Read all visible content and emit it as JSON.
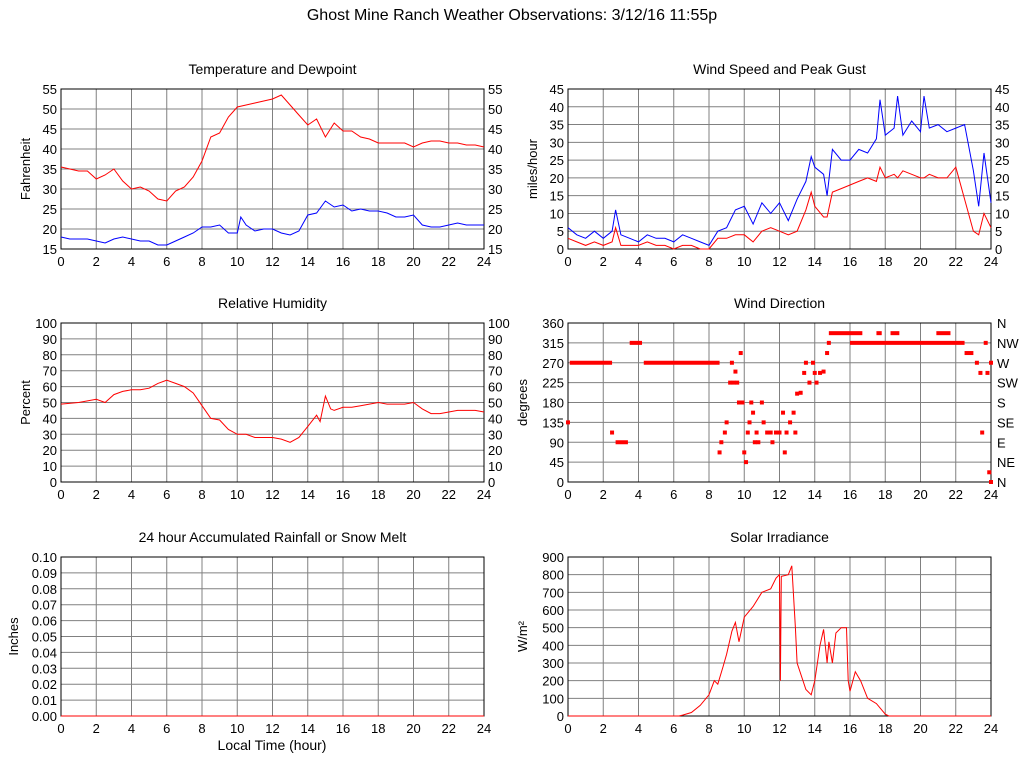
{
  "title": "Ghost Mine Ranch Weather Observations: 3/12/16 11:55p",
  "xlabel": "Local Time (hour)",
  "colors": {
    "red": "#ff0000",
    "blue": "#0000ff",
    "grid": "#808080"
  },
  "chart_data": [
    {
      "id": "temp",
      "type": "line",
      "title": "Temperature and Dewpoint",
      "ylabel": "Fahrenheit",
      "xlim": [
        0,
        24
      ],
      "xticks_step": 2,
      "ylim": [
        15,
        55
      ],
      "yticks_step": 5,
      "right_ticks": true,
      "decimals": 0,
      "series": [
        {
          "name": "Temperature",
          "color": "#ff0000",
          "x": [
            0,
            0.5,
            1,
            1.5,
            2,
            2.5,
            3,
            3.5,
            4,
            4.5,
            5,
            5.5,
            6,
            6.5,
            7,
            7.5,
            8,
            8.5,
            9,
            9.5,
            10,
            10.5,
            11,
            11.5,
            12,
            12.5,
            13,
            13.5,
            14,
            14.5,
            15,
            15.5,
            16,
            16.5,
            17,
            17.5,
            18,
            18.5,
            19,
            19.5,
            20,
            20.5,
            21,
            21.5,
            22,
            22.5,
            23,
            23.5,
            24
          ],
          "y": [
            35.5,
            35,
            34.5,
            34.5,
            32.5,
            33.5,
            35,
            32,
            30,
            30.5,
            29.5,
            27.5,
            27,
            29.5,
            30.5,
            33,
            37,
            43,
            44,
            48,
            50.5,
            51,
            51.5,
            52,
            52.5,
            53.5,
            51,
            48.5,
            46,
            47.5,
            43,
            46.5,
            44.5,
            44.5,
            43,
            42.5,
            41.5,
            41.5,
            41.5,
            41.5,
            40.5,
            41.5,
            42,
            42,
            41.5,
            41.5,
            41,
            41,
            40.5
          ]
        },
        {
          "name": "Dewpoint",
          "color": "#0000ff",
          "x": [
            0,
            0.5,
            1,
            1.5,
            2,
            2.5,
            3,
            3.5,
            4,
            4.5,
            5,
            5.5,
            6,
            6.5,
            7,
            7.5,
            8,
            8.5,
            9,
            9.5,
            10,
            10.2,
            10.5,
            11,
            11.5,
            12,
            12.5,
            13,
            13.5,
            14,
            14.5,
            15,
            15.5,
            16,
            16.5,
            17,
            17.5,
            18,
            18.5,
            19,
            19.5,
            20,
            20.5,
            21,
            21.5,
            22,
            22.5,
            23,
            23.5,
            24
          ],
          "y": [
            18,
            17.5,
            17.5,
            17.5,
            17,
            16.5,
            17.5,
            18,
            17.5,
            17,
            17,
            16,
            16,
            17,
            18,
            19,
            20.5,
            20.5,
            21,
            19,
            19,
            23,
            21,
            19.5,
            20,
            20,
            19,
            18.5,
            19.5,
            23.5,
            24,
            27,
            25.5,
            26,
            24.5,
            25,
            24.5,
            24.5,
            24,
            23,
            23,
            23.5,
            21,
            20.5,
            20.5,
            21,
            21.5,
            21,
            21,
            21
          ]
        }
      ]
    },
    {
      "id": "wind",
      "type": "line",
      "title": "Wind Speed and Peak Gust",
      "ylabel": "miles/hour",
      "xlim": [
        0,
        24
      ],
      "xticks_step": 2,
      "ylim": [
        0,
        45
      ],
      "yticks_step": 5,
      "right_ticks": true,
      "decimals": 0,
      "series": [
        {
          "name": "Peak Gust",
          "color": "#0000ff",
          "x": [
            0,
            0.5,
            1,
            1.5,
            2,
            2.5,
            2.7,
            3,
            3.5,
            4,
            4.5,
            5,
            5.5,
            6,
            6.5,
            7,
            7.5,
            8,
            8.5,
            9,
            9.5,
            10,
            10.5,
            11,
            11.5,
            12,
            12.5,
            13,
            13.5,
            13.8,
            14,
            14.5,
            14.7,
            15,
            15.5,
            16,
            16.5,
            17,
            17.5,
            17.7,
            18,
            18.5,
            18.7,
            19,
            19.5,
            20,
            20.2,
            20.5,
            21,
            21.5,
            22,
            22.5,
            23,
            23.3,
            23.6,
            24
          ],
          "y": [
            6,
            4,
            3,
            5,
            3,
            5,
            11,
            4,
            3,
            2,
            4,
            3,
            3,
            2,
            4,
            3,
            2,
            1,
            5,
            6,
            11,
            12,
            7,
            13,
            10,
            13,
            8,
            14,
            19,
            26,
            23,
            21,
            15,
            28,
            25,
            25,
            28,
            27,
            31,
            42,
            32,
            34,
            43,
            32,
            36,
            33,
            43,
            34,
            35,
            33,
            34,
            35,
            22,
            12,
            27,
            13
          ]
        },
        {
          "name": "Wind Speed",
          "color": "#ff0000",
          "x": [
            0,
            0.5,
            1,
            1.5,
            2,
            2.5,
            2.7,
            3,
            3.5,
            4,
            4.5,
            5,
            5.5,
            6,
            6.5,
            7,
            7.5,
            8,
            8.5,
            9,
            9.5,
            10,
            10.5,
            11,
            11.5,
            12,
            12.5,
            13,
            13.5,
            13.8,
            14,
            14.5,
            14.7,
            15,
            15.5,
            16,
            16.5,
            17,
            17.5,
            17.7,
            18,
            18.5,
            18.7,
            19,
            19.5,
            20,
            20.2,
            20.5,
            21,
            21.5,
            22,
            22.5,
            23,
            23.3,
            23.6,
            24
          ],
          "y": [
            3,
            2,
            1,
            2,
            1,
            2,
            6,
            1,
            1,
            1,
            2,
            1,
            1,
            0,
            1,
            1,
            0,
            0,
            3,
            3,
            4,
            4,
            2,
            5,
            6,
            5,
            4,
            5,
            11,
            16,
            12,
            9,
            9,
            16,
            17,
            18,
            19,
            20,
            19,
            23,
            20,
            21,
            20,
            22,
            21,
            20,
            20,
            21,
            20,
            20,
            23,
            14,
            5,
            4,
            10,
            6
          ]
        }
      ]
    },
    {
      "id": "rh",
      "type": "line",
      "title": "Relative Humidity",
      "ylabel": "Percent",
      "xlim": [
        0,
        24
      ],
      "xticks_step": 2,
      "ylim": [
        0,
        100
      ],
      "yticks_step": 10,
      "right_ticks": true,
      "decimals": 0,
      "series": [
        {
          "name": "Relative Humidity",
          "color": "#ff0000",
          "x": [
            0,
            1,
            2,
            2.5,
            3,
            3.5,
            4,
            4.5,
            5,
            5.5,
            6,
            6.5,
            7,
            7.5,
            8,
            8.5,
            9,
            9.5,
            10,
            10.5,
            11,
            11.5,
            12,
            12.5,
            13,
            13.5,
            14,
            14.5,
            14.7,
            15,
            15.3,
            15.5,
            16,
            16.5,
            17,
            17.5,
            18,
            18.5,
            19,
            19.5,
            20,
            20.5,
            21,
            21.5,
            22,
            22.5,
            23,
            23.5,
            24
          ],
          "y": [
            49,
            50,
            52,
            50,
            55,
            57,
            58,
            58,
            59,
            62,
            64,
            62,
            60,
            56,
            48,
            40,
            39,
            33,
            30,
            30,
            28,
            28,
            28,
            27,
            25,
            28,
            35,
            42,
            38,
            54,
            46,
            45,
            47,
            47,
            48,
            49,
            50,
            49,
            49,
            49,
            50,
            46,
            43,
            43,
            44,
            45,
            45,
            45,
            44
          ]
        }
      ]
    },
    {
      "id": "dir",
      "type": "scatter",
      "title": "Wind Direction",
      "ylabel": "degrees",
      "xlim": [
        0,
        24
      ],
      "xticks_step": 2,
      "ylim": [
        0,
        360
      ],
      "yticks_step": 45,
      "right_labels": [
        "N",
        "NE",
        "E",
        "SE",
        "S",
        "SW",
        "W",
        "NW",
        "N"
      ],
      "decimals": 0,
      "color": "#ff0000",
      "runs": [
        [
          0.1,
          2.5,
          270
        ],
        [
          2.7,
          3.4,
          90
        ],
        [
          3.5,
          4.2,
          315
        ],
        [
          4.3,
          8.6,
          270
        ],
        [
          14.8,
          16.7,
          337
        ],
        [
          16,
          22.5,
          315
        ],
        [
          17.5,
          17.8,
          337
        ],
        [
          18.3,
          18.8,
          337
        ],
        [
          20.9,
          21.7,
          337
        ],
        [
          22.5,
          23,
          292
        ]
      ],
      "points": [
        [
          0,
          135
        ],
        [
          2.5,
          112
        ],
        [
          8.6,
          67
        ],
        [
          8.7,
          90
        ],
        [
          8.9,
          112
        ],
        [
          9,
          135
        ],
        [
          9.2,
          225
        ],
        [
          9.3,
          270
        ],
        [
          9.4,
          225
        ],
        [
          9.5,
          250
        ],
        [
          9.6,
          225
        ],
        [
          9.7,
          180
        ],
        [
          9.8,
          292
        ],
        [
          9.9,
          180
        ],
        [
          10,
          67
        ],
        [
          10.1,
          45
        ],
        [
          10.2,
          112
        ],
        [
          10.3,
          135
        ],
        [
          10.4,
          180
        ],
        [
          10.5,
          157
        ],
        [
          10.6,
          90
        ],
        [
          10.7,
          112
        ],
        [
          10.8,
          90
        ],
        [
          11,
          180
        ],
        [
          11.1,
          135
        ],
        [
          11.3,
          112
        ],
        [
          11.5,
          112
        ],
        [
          11.6,
          90
        ],
        [
          11.8,
          112
        ],
        [
          12,
          112
        ],
        [
          12.2,
          157
        ],
        [
          12.3,
          67
        ],
        [
          12.4,
          112
        ],
        [
          12.6,
          135
        ],
        [
          12.8,
          157
        ],
        [
          12.9,
          112
        ],
        [
          13,
          200
        ],
        [
          13.2,
          202
        ],
        [
          13.4,
          247
        ],
        [
          13.5,
          270
        ],
        [
          13.7,
          225
        ],
        [
          13.9,
          270
        ],
        [
          14,
          247
        ],
        [
          14.1,
          225
        ],
        [
          14.3,
          247
        ],
        [
          14.5,
          250
        ],
        [
          14.7,
          292
        ],
        [
          14.8,
          315
        ],
        [
          23.2,
          270
        ],
        [
          23.4,
          247
        ],
        [
          23.5,
          112
        ],
        [
          23.7,
          315
        ],
        [
          23.8,
          247
        ],
        [
          24,
          270
        ],
        [
          23.9,
          22
        ],
        [
          24,
          0
        ]
      ]
    },
    {
      "id": "rain",
      "type": "line",
      "title": "24 hour Accumulated Rainfall or Snow Melt",
      "ylabel": "Inches",
      "xlim": [
        0,
        24
      ],
      "xticks_step": 2,
      "ylim": [
        0,
        0.1
      ],
      "yticks_step": 0.01,
      "right_ticks": false,
      "decimals": 2,
      "series": [
        {
          "name": "Rainfall",
          "color": "#ff0000",
          "x": [
            0,
            24
          ],
          "y": [
            0,
            0
          ]
        }
      ]
    },
    {
      "id": "solar",
      "type": "line",
      "title": "Solar Irradiance",
      "ylabel": "W/m²",
      "xlim": [
        0,
        24
      ],
      "xticks_step": 2,
      "ylim": [
        0,
        900
      ],
      "yticks_step": 100,
      "right_ticks": false,
      "decimals": 0,
      "series": [
        {
          "name": "Solar Irradiance",
          "color": "#ff0000",
          "x": [
            0,
            6.3,
            6.5,
            7,
            7.5,
            8,
            8.3,
            8.5,
            8.8,
            9,
            9.3,
            9.5,
            9.7,
            10,
            10.5,
            11,
            11.5,
            11.8,
            12,
            12.05,
            12.1,
            12.5,
            12.7,
            12.9,
            13,
            13.5,
            13.8,
            14,
            14.3,
            14.5,
            14.7,
            14.8,
            15,
            15.2,
            15.5,
            15.8,
            15.9,
            16,
            16.3,
            16.6,
            17,
            17.5,
            18,
            18.2,
            24
          ],
          "y": [
            0,
            0,
            5,
            20,
            60,
            120,
            200,
            180,
            280,
            350,
            480,
            530,
            420,
            560,
            620,
            700,
            720,
            780,
            800,
            200,
            790,
            800,
            850,
            500,
            300,
            150,
            120,
            200,
            400,
            490,
            300,
            420,
            300,
            470,
            500,
            500,
            200,
            140,
            250,
            200,
            100,
            70,
            10,
            0,
            0
          ]
        }
      ]
    }
  ]
}
